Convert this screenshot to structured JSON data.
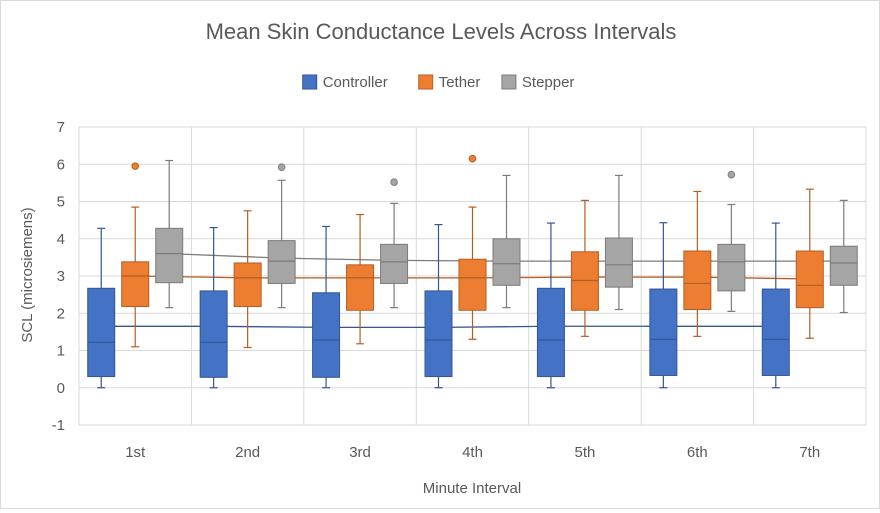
{
  "chart_data": {
    "type": "box",
    "title": "Mean Skin Conductance Levels Across Intervals",
    "xlabel": "Minute Interval",
    "ylabel": "SCL (microsiemens)",
    "ylim": [
      -1,
      7
    ],
    "yticks": [
      -1,
      0,
      1,
      2,
      3,
      4,
      5,
      6,
      7
    ],
    "categories": [
      "1st",
      "2nd",
      "3rd",
      "4th",
      "5th",
      "6th",
      "7th"
    ],
    "gridlines": true,
    "legend_position": "top",
    "series": [
      {
        "name": "Controller",
        "color": "#4472C4",
        "boxes": [
          {
            "min": 0.0,
            "q1": 0.3,
            "median": 1.22,
            "q3": 2.67,
            "max": 4.28,
            "mean": 1.65,
            "outliers": []
          },
          {
            "min": 0.0,
            "q1": 0.28,
            "median": 1.22,
            "q3": 2.6,
            "max": 4.3,
            "mean": 1.65,
            "outliers": []
          },
          {
            "min": 0.0,
            "q1": 0.28,
            "median": 1.28,
            "q3": 2.55,
            "max": 4.33,
            "mean": 1.62,
            "outliers": []
          },
          {
            "min": 0.0,
            "q1": 0.3,
            "median": 1.28,
            "q3": 2.6,
            "max": 4.38,
            "mean": 1.62,
            "outliers": []
          },
          {
            "min": 0.0,
            "q1": 0.3,
            "median": 1.28,
            "q3": 2.67,
            "max": 4.42,
            "mean": 1.65,
            "outliers": []
          },
          {
            "min": 0.0,
            "q1": 0.33,
            "median": 1.3,
            "q3": 2.65,
            "max": 4.43,
            "mean": 1.65,
            "outliers": []
          },
          {
            "min": 0.0,
            "q1": 0.33,
            "median": 1.3,
            "q3": 2.65,
            "max": 4.42,
            "mean": 1.65,
            "outliers": []
          }
        ]
      },
      {
        "name": "Tether",
        "color": "#ED7D31",
        "boxes": [
          {
            "min": 1.1,
            "q1": 2.18,
            "median": 3.0,
            "q3": 3.38,
            "max": 4.85,
            "mean": 3.0,
            "outliers": [
              5.95
            ]
          },
          {
            "min": 1.08,
            "q1": 2.18,
            "median": 2.95,
            "q3": 3.35,
            "max": 4.75,
            "mean": 2.95,
            "outliers": []
          },
          {
            "min": 1.18,
            "q1": 2.08,
            "median": 2.95,
            "q3": 3.3,
            "max": 4.65,
            "mean": 2.95,
            "outliers": []
          },
          {
            "min": 1.3,
            "q1": 2.08,
            "median": 2.95,
            "q3": 3.45,
            "max": 4.85,
            "mean": 2.95,
            "outliers": [
              6.15
            ]
          },
          {
            "min": 1.38,
            "q1": 2.08,
            "median": 2.88,
            "q3": 3.65,
            "max": 5.03,
            "mean": 2.97,
            "outliers": []
          },
          {
            "min": 1.38,
            "q1": 2.1,
            "median": 2.8,
            "q3": 3.67,
            "max": 5.27,
            "mean": 2.97,
            "outliers": []
          },
          {
            "min": 1.33,
            "q1": 2.15,
            "median": 2.75,
            "q3": 3.67,
            "max": 5.33,
            "mean": 2.92,
            "outliers": []
          }
        ]
      },
      {
        "name": "Stepper",
        "color": "#A5A5A5",
        "boxes": [
          {
            "min": 2.15,
            "q1": 2.82,
            "median": 3.6,
            "q3": 4.28,
            "max": 6.1,
            "mean": 3.6,
            "outliers": []
          },
          {
            "min": 2.15,
            "q1": 2.8,
            "median": 3.4,
            "q3": 3.95,
            "max": 5.57,
            "mean": 3.48,
            "outliers": [
              5.92
            ]
          },
          {
            "min": 2.15,
            "q1": 2.8,
            "median": 3.38,
            "q3": 3.85,
            "max": 4.95,
            "mean": 3.42,
            "outliers": [
              5.52
            ]
          },
          {
            "min": 2.15,
            "q1": 2.75,
            "median": 3.33,
            "q3": 4.0,
            "max": 5.7,
            "mean": 3.4,
            "outliers": []
          },
          {
            "min": 2.1,
            "q1": 2.7,
            "median": 3.3,
            "q3": 4.02,
            "max": 5.7,
            "mean": 3.4,
            "outliers": []
          },
          {
            "min": 2.05,
            "q1": 2.6,
            "median": 3.38,
            "q3": 3.85,
            "max": 4.92,
            "mean": 3.4,
            "outliers": [
              5.72
            ]
          },
          {
            "min": 2.02,
            "q1": 2.75,
            "median": 3.35,
            "q3": 3.8,
            "max": 5.03,
            "mean": 3.4,
            "outliers": []
          }
        ]
      }
    ]
  }
}
